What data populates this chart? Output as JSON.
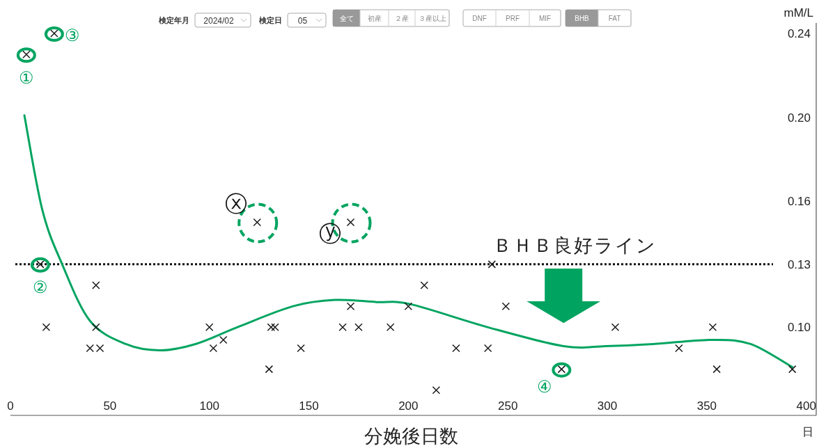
{
  "chart_data": {
    "type": "scatter",
    "xlabel": "分娩後日数",
    "ylabel": "mM/L",
    "annotations": [
      "検定年月",
      "2024/02",
      "検定日",
      "05",
      "全て",
      "初産",
      "２産",
      "３産以上",
      "DNF",
      "PRF",
      "MIF",
      "BHB",
      "FAT",
      "日",
      {
        "text": "①",
        "x": 8,
        "y": 0.23
      },
      {
        "text": "②",
        "x": 15,
        "y": 0.13
      },
      {
        "text": "③",
        "x": 22,
        "y": 0.24
      },
      {
        "text": "④",
        "x": 277,
        "y": 0.08
      },
      {
        "text": "ⓧ",
        "x": 124,
        "y": 0.15
      },
      {
        "text": "ⓨ",
        "x": 171,
        "y": 0.15
      }
    ],
    "series": [
      {
        "type": "scatter",
        "color": "#1a1a1a",
        "marker": "cross",
        "x": [
          8,
          22,
          15,
          18,
          43,
          43,
          40,
          45,
          100,
          102,
          107,
          124,
          130,
          131,
          133,
          146,
          167,
          171,
          175,
          171,
          191,
          200,
          208,
          214,
          224,
          240,
          242,
          249,
          277,
          304,
          336,
          353,
          355,
          393
        ],
        "values": [
          0.23,
          0.24,
          0.13,
          0.1,
          0.12,
          0.1,
          0.09,
          0.09,
          0.1,
          0.09,
          0.094,
          0.15,
          0.08,
          0.1,
          0.1,
          0.09,
          0.1,
          0.11,
          0.1,
          0.15,
          0.1,
          0.11,
          0.12,
          0.07,
          0.09,
          0.09,
          0.13,
          0.11,
          0.08,
          0.1,
          0.09,
          0.1,
          0.08,
          0.08
        ]
      },
      {
        "type": "line",
        "color": "#00a460",
        "x": [
          7,
          16,
          26,
          40,
          58,
          75,
          93,
          114,
          142,
          163,
          184,
          201,
          240,
          278,
          299,
          323,
          353,
          372,
          393
        ],
        "values": [
          0.201,
          0.156,
          0.13,
          0.103,
          0.092,
          0.089,
          0.092,
          0.1,
          0.11,
          0.113,
          0.112,
          0.111,
          0.1,
          0.091,
          0.091,
          0.092,
          0.094,
          0.092,
          0.081
        ]
      }
    ],
    "xlim": [
      0,
      405
    ],
    "xticks": [
      0,
      50,
      100,
      150,
      200,
      250,
      300,
      350,
      400
    ],
    "ylim": [
      0.058,
      0.245
    ],
    "yticks": [
      {
        "value": 0.1,
        "label": "0.10"
      },
      {
        "value": 0.13,
        "label": "0.13"
      },
      {
        "value": 0.16,
        "label": "0.16"
      },
      {
        "value": 0.2,
        "label": "0.20"
      },
      {
        "value": 0.24,
        "label": "0.24"
      }
    ],
    "ref_lines": [
      {
        "axis": "y",
        "value": 0.13,
        "label": "ＢＨＢ良好ライン",
        "color": "#111111",
        "line_style": "dotted"
      }
    ],
    "grid": false
  }
}
